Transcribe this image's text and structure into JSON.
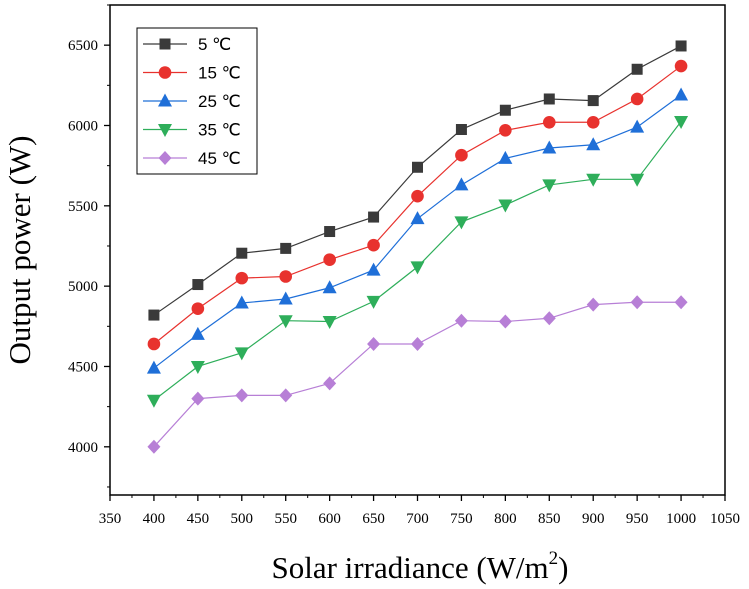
{
  "chart_data": {
    "type": "line",
    "title": "",
    "xlabel": {
      "main": "Solar irradiance (W/m",
      "sup": "2",
      "close": ")"
    },
    "ylabel": "Output power (W)",
    "xlim": [
      350,
      1050
    ],
    "ylim": [
      3700,
      6750
    ],
    "xticks": [
      "350",
      "400",
      "450",
      "500",
      "550",
      "600",
      "650",
      "700",
      "750",
      "800",
      "850",
      "900",
      "950",
      "1000",
      "1050"
    ],
    "yticks": [
      "4000",
      "4500",
      "5000",
      "5500",
      "6000",
      "6500"
    ],
    "x": [
      400,
      450,
      500,
      550,
      600,
      650,
      700,
      750,
      800,
      850,
      900,
      950,
      1000
    ],
    "legend_position": "top-left",
    "series": [
      {
        "name": "5 ℃",
        "color": "#3a3a3a",
        "marker": "square",
        "values": [
          4820,
          5010,
          5205,
          5235,
          5340,
          5430,
          5740,
          5975,
          6095,
          6165,
          6155,
          6350,
          6495
        ]
      },
      {
        "name": "15 ℃",
        "color": "#e8322e",
        "marker": "circle",
        "values": [
          4640,
          4860,
          5050,
          5060,
          5165,
          5255,
          5560,
          5815,
          5970,
          6020,
          6020,
          6165,
          6370
        ]
      },
      {
        "name": "25 ℃",
        "color": "#1f6fd8",
        "marker": "triangle-up",
        "values": [
          4490,
          4700,
          4895,
          4920,
          4990,
          5100,
          5420,
          5630,
          5795,
          5860,
          5880,
          5990,
          6190
        ]
      },
      {
        "name": "35 ℃",
        "color": "#2eae5a",
        "marker": "triangle-down",
        "values": [
          4290,
          4500,
          4585,
          4785,
          4780,
          4905,
          5120,
          5400,
          5505,
          5630,
          5665,
          5665,
          6025
        ]
      },
      {
        "name": "45 ℃",
        "color": "#b77fd6",
        "marker": "diamond",
        "values": [
          4000,
          4300,
          4320,
          4320,
          4395,
          4640,
          4640,
          4785,
          4780,
          4800,
          4885,
          4900,
          4900
        ]
      }
    ]
  }
}
